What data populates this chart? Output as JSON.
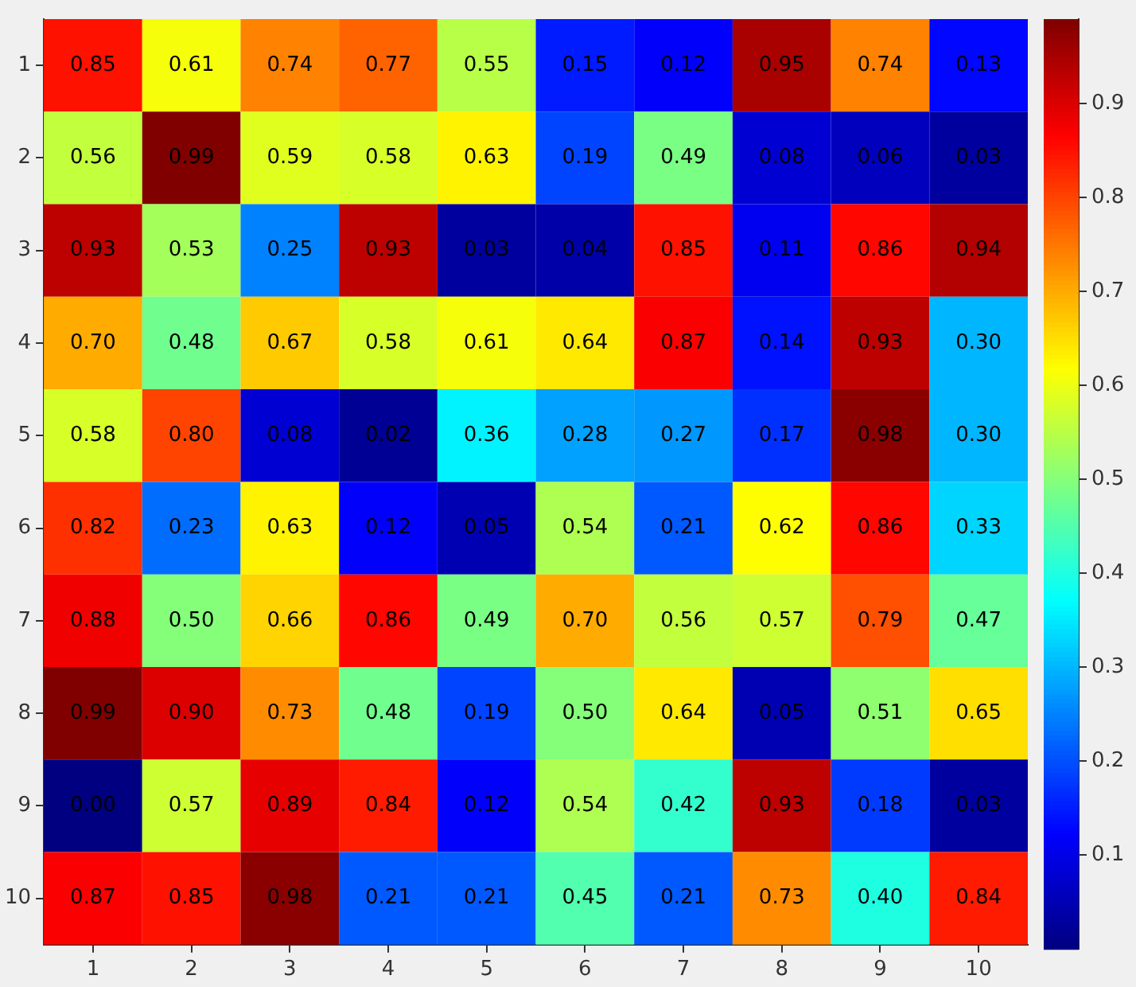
{
  "chart_data": {
    "type": "heatmap",
    "categories": [
      "1",
      "2",
      "3",
      "4",
      "5",
      "6",
      "7",
      "8",
      "9",
      "10"
    ],
    "y_categories": [
      "1",
      "2",
      "3",
      "4",
      "5",
      "6",
      "7",
      "8",
      "9",
      "10"
    ],
    "cells": [
      [
        0.85,
        0.61,
        0.74,
        0.77,
        0.55,
        0.15,
        0.12,
        0.95,
        0.74,
        0.13
      ],
      [
        0.56,
        0.99,
        0.59,
        0.58,
        0.63,
        0.19,
        0.49,
        0.08,
        0.06,
        0.03
      ],
      [
        0.93,
        0.53,
        0.25,
        0.93,
        0.03,
        0.04,
        0.85,
        0.11,
        0.86,
        0.94
      ],
      [
        0.7,
        0.48,
        0.67,
        0.58,
        0.61,
        0.64,
        0.87,
        0.14,
        0.93,
        0.3
      ],
      [
        0.58,
        0.8,
        0.08,
        0.02,
        0.36,
        0.28,
        0.27,
        0.17,
        0.98,
        0.3
      ],
      [
        0.82,
        0.23,
        0.63,
        0.12,
        0.05,
        0.54,
        0.21,
        0.62,
        0.86,
        0.33
      ],
      [
        0.88,
        0.5,
        0.66,
        0.86,
        0.49,
        0.7,
        0.56,
        0.57,
        0.79,
        0.47
      ],
      [
        0.99,
        0.9,
        0.73,
        0.48,
        0.19,
        0.5,
        0.64,
        0.05,
        0.51,
        0.65
      ],
      [
        0.0,
        0.57,
        0.89,
        0.84,
        0.12,
        0.54,
        0.42,
        0.93,
        0.18,
        0.03
      ],
      [
        0.87,
        0.85,
        0.98,
        0.21,
        0.21,
        0.45,
        0.21,
        0.73,
        0.4,
        0.84
      ]
    ],
    "cell_labels": [
      [
        "0.85",
        "0.61",
        "0.74",
        "0.77",
        "0.55",
        "0.15",
        "0.12",
        "0.95",
        "0.74",
        "0.13"
      ],
      [
        "0.56",
        "0.99",
        "0.59",
        "0.58",
        "0.63",
        "0.19",
        "0.49",
        "0.08",
        "0.06",
        "0.03"
      ],
      [
        "0.93",
        "0.53",
        "0.25",
        "0.93",
        "0.03",
        "0.04",
        "0.85",
        "0.11",
        "0.86",
        "0.94"
      ],
      [
        "0.70",
        "0.48",
        "0.67",
        "0.58",
        "0.61",
        "0.64",
        "0.87",
        "0.14",
        "0.93",
        "0.30"
      ],
      [
        "0.58",
        "0.80",
        "0.08",
        "0.02",
        "0.36",
        "0.28",
        "0.27",
        "0.17",
        "0.98",
        "0.30"
      ],
      [
        "0.82",
        "0.23",
        "0.63",
        "0.12",
        "0.05",
        "0.54",
        "0.21",
        "0.62",
        "0.86",
        "0.33"
      ],
      [
        "0.88",
        "0.50",
        "0.66",
        "0.86",
        "0.49",
        "0.70",
        "0.56",
        "0.57",
        "0.79",
        "0.47"
      ],
      [
        "0.99",
        "0.90",
        "0.73",
        "0.48",
        "0.19",
        "0.50",
        "0.64",
        "0.05",
        "0.51",
        "0.65"
      ],
      [
        "0.00",
        "0.57",
        "0.89",
        "0.84",
        "0.12",
        "0.54",
        "0.42",
        "0.93",
        "0.18",
        "0.03"
      ],
      [
        "0.87",
        "0.85",
        "0.98",
        "0.21",
        "0.21",
        "0.45",
        "0.21",
        "0.73",
        "0.40",
        "0.84"
      ]
    ],
    "data_labels": true,
    "clim": [
      0,
      0.99
    ],
    "cticks": [
      0.1,
      0.2,
      0.3,
      0.4,
      0.5,
      0.6,
      0.7,
      0.8,
      0.9
    ]
  }
}
